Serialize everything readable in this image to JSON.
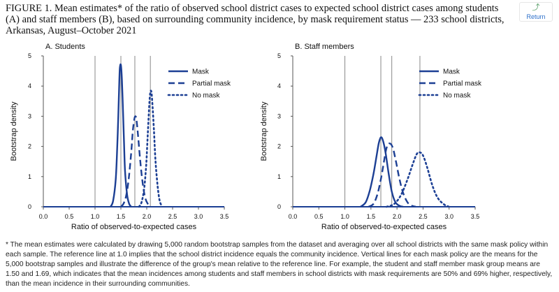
{
  "header": {
    "title": "FIGURE 1. Mean estimates* of the ratio of observed school district cases to expected school district cases among students (A) and staff members (B), based on surrounding community incidence, by mask requirement status — 233 school districts, Arkansas, August–October 2021",
    "return_label": "Return"
  },
  "footnote": "* The mean estimates were calculated by drawing 5,000 random bootstrap samples from the dataset and averaging over all school districts with the same mask policy within each sample. The reference line at 1.0 implies that the school district incidence equals the community incidence. Vertical lines for each mask policy are the means for the 5,000 bootstrap samples and illustrate the difference of the group's mean relative to the reference line. For example, the student and staff member mask group means are 1.50 and 1.69, which indicates that the mean incidences among students and staff members in school districts with mask requirements are 50% and 69% higher, respectively, than the mean incidence in their surrounding communities.",
  "colors": {
    "series": "#1c3f94",
    "axis": "#555555",
    "vline": "#888888"
  },
  "chart_data": [
    {
      "type": "line",
      "panel_title": "A. Students",
      "xlabel": "Ratio of observed-to-expected cases",
      "ylabel": "Bootstrap density",
      "xlim": [
        0,
        3.5
      ],
      "ylim": [
        0,
        5
      ],
      "xticks": [
        "0.0",
        "0.5",
        "1.0",
        "1.5",
        "2.0",
        "2.5",
        "3.0",
        "3.5"
      ],
      "yticks": [
        "0",
        "1",
        "2",
        "3",
        "4",
        "5"
      ],
      "reference_line": 1.0,
      "mean_lines": [
        1.5,
        1.77,
        2.07
      ],
      "legend_position": "top-right",
      "series": [
        {
          "name": "Mask",
          "dash": "solid",
          "x": [
            1.3,
            1.35,
            1.4,
            1.43,
            1.45,
            1.47,
            1.48,
            1.5,
            1.52,
            1.54,
            1.56,
            1.58,
            1.62,
            1.66,
            1.7
          ],
          "y": [
            0,
            0.2,
            0.9,
            2.0,
            3.0,
            4.2,
            4.6,
            4.7,
            4.2,
            3.2,
            2.2,
            1.2,
            0.4,
            0.1,
            0
          ]
        },
        {
          "name": "Partial mask",
          "dash": "dash",
          "x": [
            1.5,
            1.55,
            1.6,
            1.65,
            1.7,
            1.73,
            1.76,
            1.78,
            1.8,
            1.83,
            1.87,
            1.92,
            1.97,
            2.02,
            2.08
          ],
          "y": [
            0,
            0.1,
            0.35,
            0.9,
            1.8,
            2.5,
            2.9,
            3.0,
            2.9,
            2.4,
            1.6,
            0.8,
            0.3,
            0.1,
            0
          ]
        },
        {
          "name": "No mask",
          "dash": "dot",
          "x": [
            1.85,
            1.9,
            1.95,
            1.99,
            2.02,
            2.05,
            2.07,
            2.09,
            2.11,
            2.14,
            2.17,
            2.21,
            2.25,
            2.3
          ],
          "y": [
            0,
            0.15,
            0.6,
            1.4,
            2.4,
            3.4,
            3.8,
            3.8,
            3.4,
            2.5,
            1.5,
            0.7,
            0.2,
            0
          ]
        }
      ]
    },
    {
      "type": "line",
      "panel_title": "B. Staff members",
      "xlabel": "Ratio of observed-to-expected cases",
      "ylabel": "Bootstrap density",
      "xlim": [
        0,
        3.5
      ],
      "ylim": [
        0,
        5
      ],
      "xticks": [
        "0.0",
        "0.5",
        "1.0",
        "1.5",
        "2.0",
        "2.5",
        "3.0",
        "3.5"
      ],
      "yticks": [
        "0",
        "1",
        "2",
        "3",
        "4",
        "5"
      ],
      "reference_line": 1.0,
      "mean_lines": [
        1.69,
        1.9,
        2.44
      ],
      "legend_position": "top-right",
      "series": [
        {
          "name": "Mask",
          "dash": "solid",
          "x": [
            1.3,
            1.4,
            1.48,
            1.55,
            1.6,
            1.65,
            1.69,
            1.73,
            1.78,
            1.84,
            1.9,
            1.97,
            2.05,
            2.12
          ],
          "y": [
            0,
            0.15,
            0.55,
            1.1,
            1.6,
            2.1,
            2.3,
            2.2,
            1.8,
            1.1,
            0.5,
            0.15,
            0.03,
            0
          ]
        },
        {
          "name": "Partial mask",
          "dash": "dash",
          "x": [
            1.45,
            1.55,
            1.63,
            1.7,
            1.75,
            1.8,
            1.86,
            1.92,
            1.98,
            2.05,
            2.12,
            2.2,
            2.28,
            2.36
          ],
          "y": [
            0,
            0.1,
            0.45,
            1.0,
            1.5,
            1.95,
            2.1,
            1.95,
            1.5,
            0.9,
            0.45,
            0.15,
            0.04,
            0
          ]
        },
        {
          "name": "No mask",
          "dash": "dot",
          "x": [
            1.8,
            1.95,
            2.08,
            2.2,
            2.3,
            2.38,
            2.44,
            2.5,
            2.58,
            2.68,
            2.78,
            2.9,
            3.0
          ],
          "y": [
            0,
            0.1,
            0.4,
            0.9,
            1.4,
            1.75,
            1.8,
            1.7,
            1.3,
            0.7,
            0.3,
            0.08,
            0
          ]
        }
      ]
    }
  ]
}
